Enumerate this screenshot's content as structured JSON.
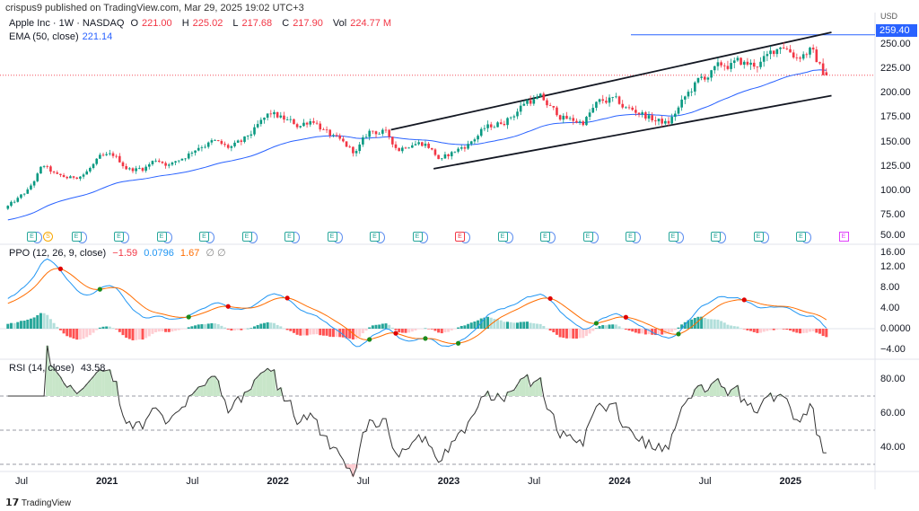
{
  "header": {
    "published": "crispus9 published on TradingView.com, Mar 29, 2025 19:02 UTC+3"
  },
  "legend": {
    "symbol": "Apple Inc · 1W · NASDAQ",
    "o_label": "O",
    "o": "221.00",
    "h_label": "H",
    "h": "225.02",
    "l_label": "L",
    "l": "217.68",
    "c_label": "C",
    "c": "217.90",
    "vol_label": "Vol",
    "vol": "224.77 M",
    "ema_label": "EMA (50, close)",
    "ema": "221.14",
    "ppo_label": "PPO (12, 26, 9, close)",
    "ppo": "−1.59",
    "ppo_signal": "0.0796",
    "ppo_hist": "1.67",
    "ppo_extra": "∅ ∅",
    "rsi_label": "RSI (14, close)",
    "rsi": "43.58"
  },
  "price_axis": {
    "currency": "USD",
    "ticks": [
      "250.00",
      "225.00",
      "200.00",
      "175.00",
      "150.00",
      "125.00",
      "100.00",
      "75.00",
      "50.00"
    ],
    "highlight": "259.40"
  },
  "ppo_axis": {
    "ticks": [
      "16.00",
      "12.00",
      "8.00",
      "4.00",
      "0.0000",
      "−4.00"
    ]
  },
  "rsi_axis": {
    "ticks": [
      "80.00",
      "60.00",
      "40.00"
    ]
  },
  "time_axis": [
    {
      "label": "Jul",
      "year": false
    },
    {
      "label": "2021",
      "year": true
    },
    {
      "label": "Jul",
      "year": false
    },
    {
      "label": "2022",
      "year": true
    },
    {
      "label": "Jul",
      "year": false
    },
    {
      "label": "2023",
      "year": true
    },
    {
      "label": "Jul",
      "year": false
    },
    {
      "label": "2024",
      "year": true
    },
    {
      "label": "Jul",
      "year": false
    },
    {
      "label": "2025",
      "year": true
    }
  ],
  "events": [
    {
      "type": "E"
    },
    {
      "type": "S"
    },
    {
      "type": "E"
    },
    {
      "type": "E"
    },
    {
      "type": "E"
    },
    {
      "type": "E"
    },
    {
      "type": "E"
    },
    {
      "type": "E"
    },
    {
      "type": "E"
    },
    {
      "type": "E"
    },
    {
      "type": "E"
    },
    {
      "type": "E",
      "variant": "r"
    },
    {
      "type": "E"
    },
    {
      "type": "E"
    },
    {
      "type": "E"
    },
    {
      "type": "E"
    },
    {
      "type": "E"
    },
    {
      "type": "E"
    },
    {
      "type": "E"
    },
    {
      "type": "E"
    },
    {
      "type": "E",
      "variant": "p"
    }
  ],
  "footer": {
    "brand": "TradingView"
  },
  "chart_data": {
    "type": "candlestick",
    "title": "Apple Inc · 1W · NASDAQ",
    "interval": "1W",
    "start_month": "2020-05",
    "monthly_close_approx": [
      78,
      88,
      100,
      125,
      114,
      112,
      118,
      132,
      135,
      122,
      122,
      132,
      126,
      135,
      146,
      150,
      143,
      148,
      163,
      178,
      172,
      166,
      174,
      158,
      148,
      138,
      160,
      160,
      142,
      150,
      148,
      130,
      140,
      148,
      162,
      168,
      176,
      192,
      194,
      180,
      172,
      170,
      188,
      193,
      184,
      180,
      172,
      168,
      190,
      210,
      220,
      228,
      230,
      228,
      235,
      252,
      238,
      244,
      218
    ],
    "last_bar": {
      "open": 221.0,
      "high": 225.02,
      "low": 217.68,
      "close": 217.9
    },
    "ylim": [
      50,
      262
    ],
    "horizontal_level": 259.4,
    "current_price_line": 217.9,
    "channel": {
      "upper": [
        [
          "2022-09",
          162
        ],
        [
          "2025-04",
          262
        ]
      ],
      "lower": [
        [
          "2022-12",
          122
        ],
        [
          "2025-04",
          197
        ]
      ]
    },
    "indicators": {
      "ema": 50,
      "ppo": [
        12,
        26,
        9
      ],
      "rsi": 14,
      "rsi_levels": [
        70,
        50,
        30
      ],
      "ppo_ylim": [
        -4,
        16
      ],
      "rsi_ylim": [
        30,
        90
      ]
    },
    "colors": {
      "up": "#089981",
      "down": "#f23645",
      "ema": "#2962ff",
      "ppo": "#2196f3",
      "signal": "#ff6d00",
      "rsi": "#333333"
    }
  }
}
